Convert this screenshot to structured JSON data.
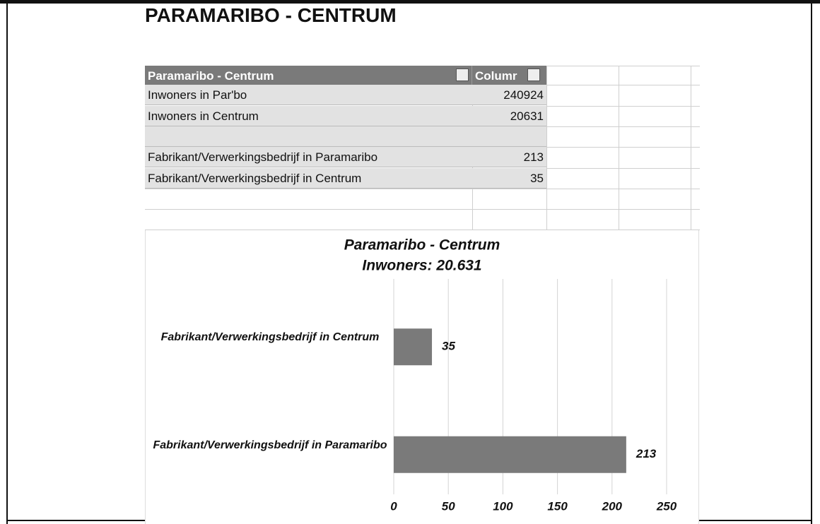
{
  "title": "PARAMARIBO - CENTRUM",
  "table": {
    "header": [
      "Paramaribo - Centrum",
      "Columr"
    ],
    "rows": [
      [
        "Inwoners in Par'bo",
        240924
      ],
      [
        "Inwoners in Centrum",
        20631
      ],
      [
        "Fabrikant/Verwerkingsbedrijf in Paramaribo",
        213
      ],
      [
        "Fabrikant/Verwerkingsbedrijf in Centrum",
        35
      ]
    ]
  },
  "chart_data": {
    "type": "hbar",
    "title": "Paramaribo - Centrum",
    "subtitle": "Inwoners: 20.631",
    "categories": [
      "Fabrikant/Verwerkingsbedrijf in Centrum",
      "Fabrikant/Verwerkingsbedrijf in Paramaribo"
    ],
    "values": [
      35,
      213
    ],
    "color": "#7a7a7a",
    "xlim": [
      0,
      250
    ],
    "xticks": [
      0,
      50,
      100,
      150,
      200,
      250
    ],
    "grid": true
  }
}
